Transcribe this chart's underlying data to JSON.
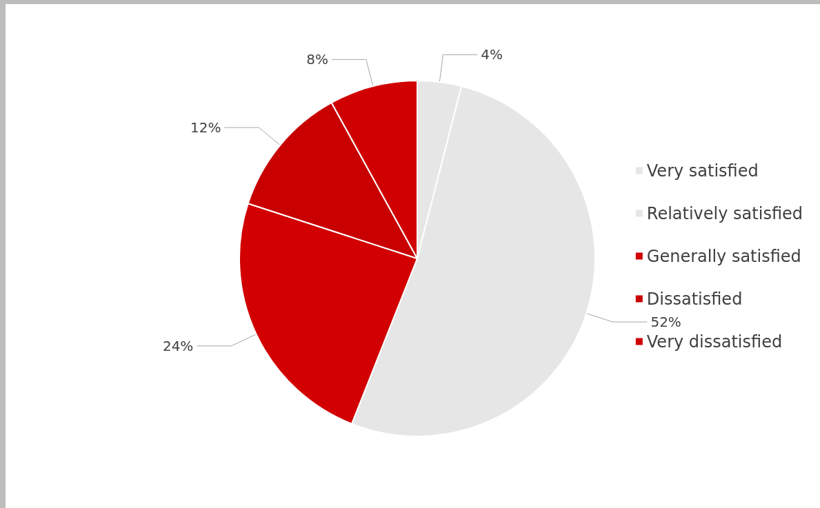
{
  "chart_data": {
    "type": "pie",
    "categories": [
      "Very satisfied",
      "Relatively satisfied",
      "Generally satisfied",
      "Dissatisfied",
      "Very dissatisfied"
    ],
    "values": [
      4,
      52,
      24,
      12,
      8
    ],
    "colors": [
      "#e6e6e6",
      "#e6e6e6",
      "#d20000",
      "#c80000",
      "#d00000"
    ],
    "value_labels": [
      "4%",
      "52%",
      "24%",
      "12%",
      "8%"
    ],
    "legend": "right"
  }
}
